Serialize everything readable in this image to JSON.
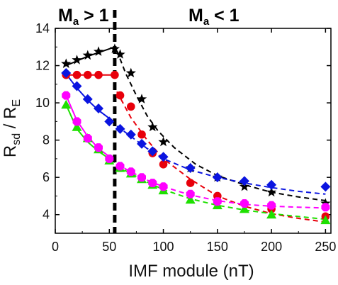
{
  "chart_data": {
    "type": "scatter",
    "xlabel": "IMF module (nT)",
    "ylabel": {
      "main": "R",
      "sub1": "sd",
      "mid": " / R",
      "sub2": "E"
    },
    "xlim": [
      0,
      255
    ],
    "ylim": [
      3,
      14
    ],
    "xticks": [
      "0",
      "50",
      "100",
      "150",
      "200",
      "250"
    ],
    "yticks": [
      "4",
      "6",
      "8",
      "10",
      "12",
      "14"
    ],
    "grid": false,
    "legend": "none",
    "annotations": {
      "left": {
        "main": "M",
        "sub": "a",
        "rest": " > 1"
      },
      "right": {
        "main": "M",
        "sub": "a",
        "rest": " < 1"
      }
    },
    "divider_x": 55,
    "series": [
      {
        "marker": "star",
        "color": "#000000",
        "x": [
          10,
          20,
          30,
          40,
          55,
          60,
          70,
          80,
          90,
          100,
          125,
          150,
          175,
          200,
          250
        ],
        "y": [
          12.1,
          12.3,
          12.55,
          12.75,
          12.9,
          12.6,
          11.6,
          10.2,
          8.7,
          7.9,
          6.5,
          6.0,
          5.5,
          5.2,
          4.6
        ],
        "fit_left": {
          "x": [
            10,
            20,
            30,
            40,
            55
          ],
          "y": [
            12.0,
            12.25,
            12.5,
            12.7,
            13.0
          ]
        },
        "fit_right": {
          "x": [
            57,
            65,
            75,
            85,
            95,
            110,
            130,
            150,
            175,
            200,
            225,
            250
          ],
          "y": [
            12.8,
            11.6,
            10.4,
            9.3,
            8.5,
            7.6,
            6.7,
            6.1,
            5.6,
            5.2,
            4.95,
            4.75
          ]
        }
      },
      {
        "marker": "circle",
        "color": "#e8000b",
        "x": [
          10,
          20,
          30,
          40,
          55,
          60,
          70,
          80,
          90,
          100,
          125,
          150,
          175,
          200,
          250
        ],
        "y": [
          11.5,
          11.5,
          11.5,
          11.5,
          11.5,
          10.4,
          9.8,
          8.3,
          7.3,
          6.7,
          5.7,
          5.0,
          4.6,
          4.3,
          3.9
        ],
        "fit_left": {
          "x": [
            10,
            55
          ],
          "y": [
            11.5,
            11.5
          ]
        },
        "fit_right": {
          "x": [
            57,
            70,
            85,
            100,
            125,
            150,
            175,
            200,
            225,
            250
          ],
          "y": [
            10.6,
            9.2,
            8.0,
            7.0,
            5.9,
            5.0,
            4.45,
            4.05,
            3.8,
            3.6
          ]
        }
      },
      {
        "marker": "diamond",
        "color": "#0a14e0",
        "x": [
          10,
          20,
          30,
          40,
          50,
          60,
          70,
          80,
          90,
          100,
          125,
          150,
          175,
          200,
          250
        ],
        "y": [
          11.6,
          10.9,
          10.2,
          9.7,
          9.0,
          8.6,
          8.3,
          7.8,
          7.4,
          7.1,
          6.5,
          6.0,
          5.8,
          5.6,
          5.5
        ],
        "fit_left": {
          "x": [
            10,
            20,
            30,
            40,
            55
          ],
          "y": [
            11.55,
            10.8,
            10.15,
            9.6,
            8.95
          ]
        },
        "fit_right": {
          "x": [
            57,
            70,
            85,
            100,
            125,
            150,
            175,
            200,
            225,
            250
          ],
          "y": [
            8.75,
            8.2,
            7.55,
            7.0,
            6.4,
            6.0,
            5.7,
            5.45,
            5.25,
            5.1
          ]
        }
      },
      {
        "marker": "triangle",
        "color": "#1ee000",
        "x": [
          10,
          20,
          30,
          40,
          50,
          60,
          70,
          80,
          90,
          100,
          125,
          150,
          175,
          200,
          250
        ],
        "y": [
          9.9,
          8.7,
          8.1,
          7.5,
          6.9,
          6.5,
          6.2,
          5.9,
          5.6,
          5.3,
          4.8,
          4.5,
          4.3,
          4.0,
          3.7
        ],
        "fit_left": {
          "x": [
            10,
            20,
            30,
            40,
            55
          ],
          "y": [
            9.9,
            8.6,
            7.9,
            7.4,
            6.8
          ]
        },
        "fit_right": {
          "x": [
            57,
            70,
            85,
            100,
            125,
            150,
            175,
            200,
            225,
            250
          ],
          "y": [
            6.6,
            6.2,
            5.75,
            5.35,
            4.85,
            4.5,
            4.25,
            4.05,
            3.9,
            3.75
          ]
        }
      },
      {
        "marker": "octagon",
        "color": "#ff00ff",
        "x": [
          10,
          20,
          30,
          40,
          50,
          60,
          70,
          80,
          90,
          100,
          125,
          150,
          175,
          200,
          250
        ],
        "y": [
          10.4,
          9.0,
          8.1,
          7.6,
          7.0,
          6.6,
          6.3,
          6.0,
          5.7,
          5.5,
          5.1,
          4.7,
          4.6,
          4.5,
          4.4
        ],
        "fit_left": {
          "x": [
            10,
            20,
            30,
            40,
            55
          ],
          "y": [
            10.4,
            9.05,
            8.2,
            7.55,
            6.9
          ]
        },
        "fit_right": {
          "x": [
            57,
            70,
            85,
            100,
            125,
            150,
            175,
            200,
            225,
            250
          ],
          "y": [
            6.7,
            6.3,
            5.85,
            5.5,
            5.05,
            4.75,
            4.55,
            4.45,
            4.4,
            4.35
          ]
        }
      }
    ]
  }
}
